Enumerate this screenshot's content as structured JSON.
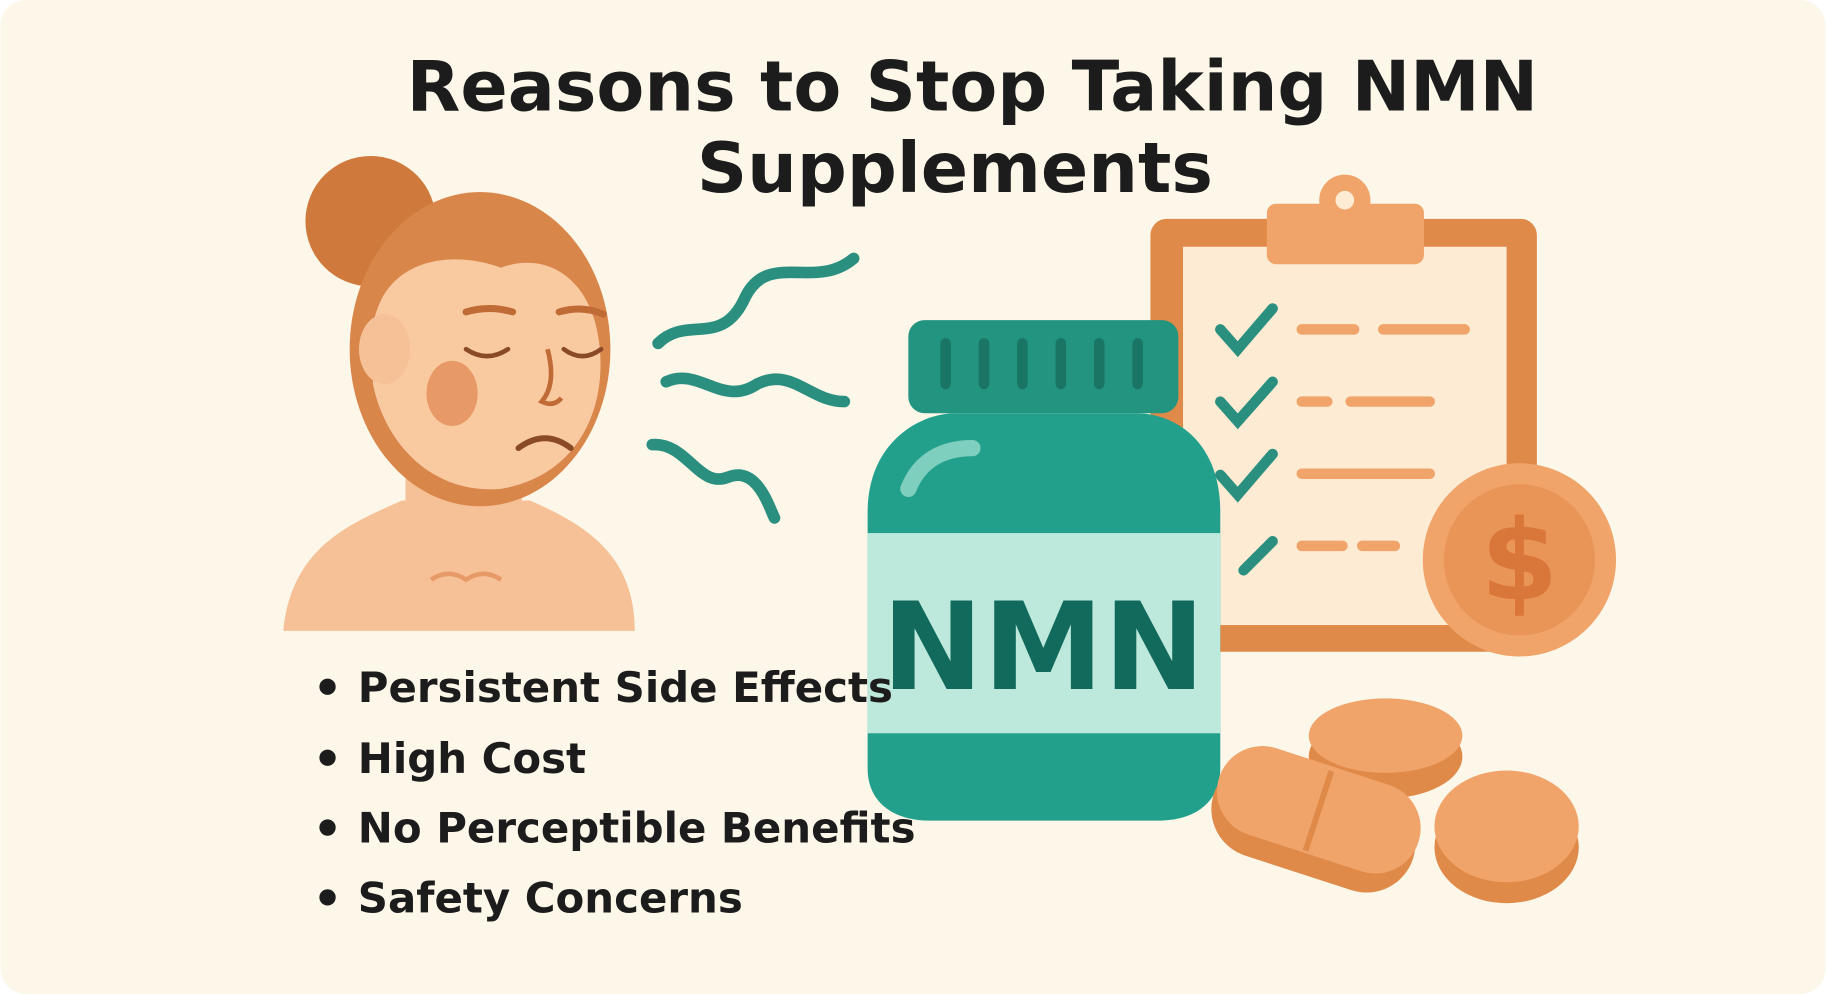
{
  "title": [
    "Reasons to Stop Taking NMN",
    "Supplements"
  ],
  "reasons": [
    "Persistent Side Effects",
    "High Cost",
    "No Perceptible Benefits",
    "Safety Concerns"
  ],
  "bottle_label": "NMN",
  "coin_symbol": "$"
}
